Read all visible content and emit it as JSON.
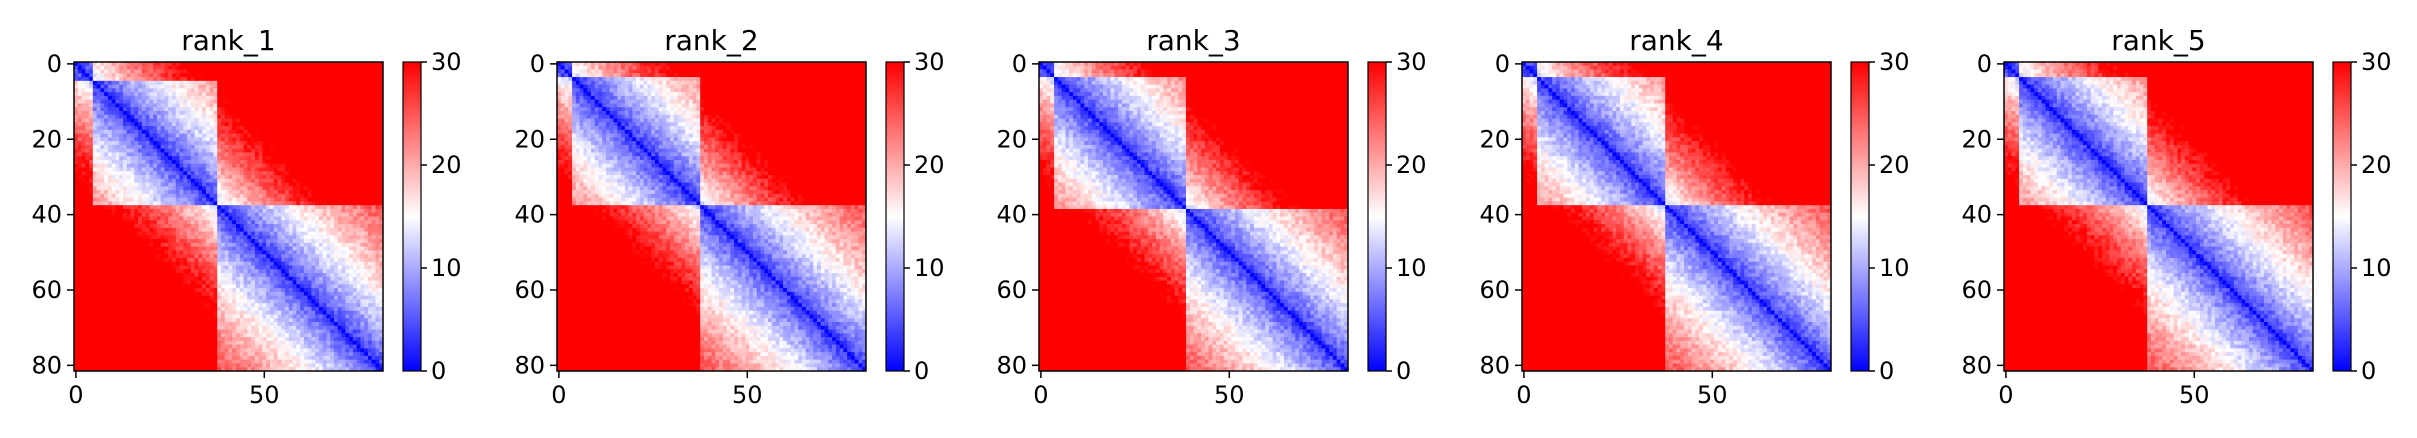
{
  "chart_data": [
    {
      "type": "heatmap",
      "title": "rank_1",
      "matrix_size": 82,
      "x_ticks": [
        0,
        50
      ],
      "y_ticks": [
        0,
        20,
        40,
        60,
        80
      ],
      "colorbar": {
        "ticks": [
          0,
          10,
          20,
          30
        ],
        "range": [
          0,
          30
        ],
        "colormap": "bwr"
      },
      "domain_boundaries": [
        0,
        5,
        38,
        82
      ],
      "seed": 11
    },
    {
      "type": "heatmap",
      "title": "rank_2",
      "matrix_size": 82,
      "x_ticks": [
        0,
        50
      ],
      "y_ticks": [
        0,
        20,
        40,
        60,
        80
      ],
      "colorbar": {
        "ticks": [
          0,
          10,
          20,
          30
        ],
        "range": [
          0,
          30
        ],
        "colormap": "bwr"
      },
      "domain_boundaries": [
        0,
        4,
        38,
        82
      ],
      "seed": 23
    },
    {
      "type": "heatmap",
      "title": "rank_3",
      "matrix_size": 82,
      "x_ticks": [
        0,
        50
      ],
      "y_ticks": [
        0,
        20,
        40,
        60,
        80
      ],
      "colorbar": {
        "ticks": [
          0,
          10,
          20,
          30
        ],
        "range": [
          0,
          30
        ],
        "colormap": "bwr"
      },
      "domain_boundaries": [
        0,
        4,
        39,
        82
      ],
      "seed": 37
    },
    {
      "type": "heatmap",
      "title": "rank_4",
      "matrix_size": 82,
      "x_ticks": [
        0,
        50
      ],
      "y_ticks": [
        0,
        20,
        40,
        60,
        80
      ],
      "colorbar": {
        "ticks": [
          0,
          10,
          20,
          30
        ],
        "range": [
          0,
          30
        ],
        "colormap": "bwr"
      },
      "domain_boundaries": [
        0,
        4,
        38,
        82
      ],
      "seed": 41
    },
    {
      "type": "heatmap",
      "title": "rank_5",
      "matrix_size": 82,
      "x_ticks": [
        0,
        50
      ],
      "y_ticks": [
        0,
        20,
        40,
        60,
        80
      ],
      "colorbar": {
        "ticks": [
          0,
          10,
          20,
          30
        ],
        "range": [
          0,
          30
        ],
        "colormap": "bwr"
      },
      "domain_boundaries": [
        0,
        4,
        38,
        82
      ],
      "seed": 53
    }
  ]
}
